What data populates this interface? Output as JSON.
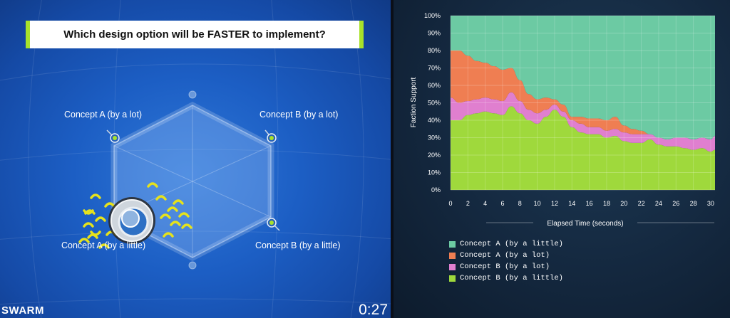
{
  "question": "Which design option will be FASTER to implement?",
  "brand": "SWARM",
  "timer": "0:27",
  "concepts": {
    "top_left": "Concept A (by a lot)",
    "top_right": "Concept B (by a lot)",
    "bottom_left": "Concept A (by a little)",
    "bottom_right": "Concept B (by a little)"
  },
  "icons": [
    "puck-magnet-icon",
    "swarm-user-icon"
  ],
  "chart_data": {
    "type": "area",
    "stacked": true,
    "xlabel": "Elapsed Time (seconds)",
    "ylabel": "Faction Support",
    "xlim": [
      0,
      30.5
    ],
    "ylim": [
      0,
      100
    ],
    "x_ticks": [
      "0",
      "2",
      "4",
      "6",
      "8",
      "10",
      "12",
      "14",
      "16",
      "18",
      "20",
      "22",
      "24",
      "26",
      "28",
      "30"
    ],
    "y_ticks": [
      "0%",
      "10%",
      "20%",
      "30%",
      "40%",
      "50%",
      "60%",
      "70%",
      "80%",
      "90%",
      "100%"
    ],
    "grid": true,
    "legend_position": "bottom",
    "x": [
      0,
      1,
      2,
      3,
      4,
      5,
      6,
      7,
      8,
      9,
      10,
      11,
      12,
      13,
      14,
      15,
      16,
      17,
      18,
      19,
      20,
      21,
      22,
      23,
      24,
      25,
      26,
      27,
      28,
      29,
      30,
      30.5
    ],
    "series": [
      {
        "name": "Concept B (by a little)",
        "color": "#9fd93c",
        "values": [
          40,
          40,
          43,
          44,
          45,
          44,
          43,
          48,
          44,
          40,
          38,
          42,
          46,
          42,
          36,
          33,
          32,
          32,
          30,
          31,
          28,
          27,
          27,
          29,
          26,
          25,
          25,
          24,
          23,
          24,
          22,
          23
        ]
      },
      {
        "name": "Concept B (by a lot)",
        "color": "#e07fcf",
        "values": [
          13,
          10,
          8,
          8,
          8,
          8,
          8,
          8,
          7,
          6,
          6,
          4,
          3,
          3,
          4,
          5,
          4,
          4,
          4,
          4,
          5,
          5,
          5,
          3,
          4,
          4,
          5,
          6,
          6,
          6,
          7,
          8
        ]
      },
      {
        "name": "Concept A (by a lot)",
        "color": "#ef7e52",
        "values": [
          27,
          30,
          26,
          22,
          20,
          19,
          18,
          14,
          12,
          9,
          8,
          7,
          3,
          4,
          2,
          4,
          5,
          5,
          6,
          7,
          4,
          3,
          2,
          0,
          0,
          0,
          0,
          0,
          0,
          0,
          0,
          0
        ]
      },
      {
        "name": "Concept A (by a little)",
        "color": "#6ccaa3",
        "values": [
          20,
          20,
          23,
          26,
          27,
          29,
          31,
          30,
          37,
          45,
          48,
          47,
          48,
          51,
          58,
          58,
          59,
          59,
          60,
          58,
          63,
          65,
          66,
          68,
          70,
          71,
          70,
          70,
          71,
          70,
          71,
          69
        ]
      }
    ],
    "legend_order": [
      "Concept A (by a little)",
      "Concept A (by a lot)",
      "Concept B (by a lot)",
      "Concept B (by a little)"
    ]
  }
}
